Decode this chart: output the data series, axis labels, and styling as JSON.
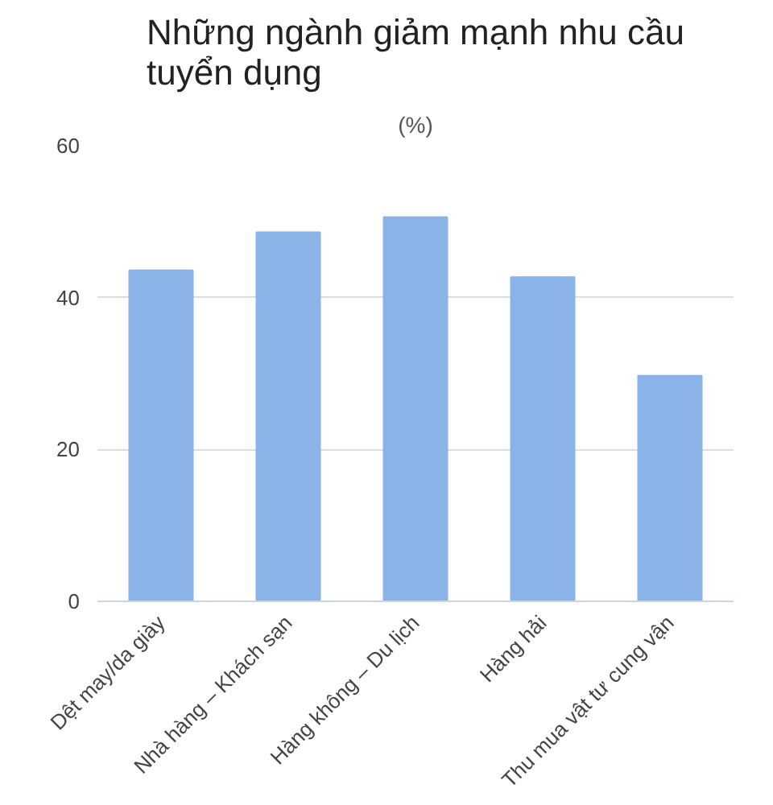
{
  "chart_data": {
    "type": "bar",
    "title": "Những ngành giảm mạnh nhu cầu\ntuyển dụng",
    "subtitle": "(%)",
    "categories": [
      "Dệt may/da giày",
      "Nhà hàng – Khách sạn",
      "Hàng không – Du lịch",
      "Hàng hải",
      "Thu mua vật tư cung vận"
    ],
    "values": [
      43.6,
      48.6,
      50.6,
      42.7,
      29.7
    ],
    "color": "#8ab4e8",
    "ylim": [
      0,
      60
    ],
    "yticks": [
      0,
      20,
      40,
      60
    ],
    "grid": "y"
  }
}
